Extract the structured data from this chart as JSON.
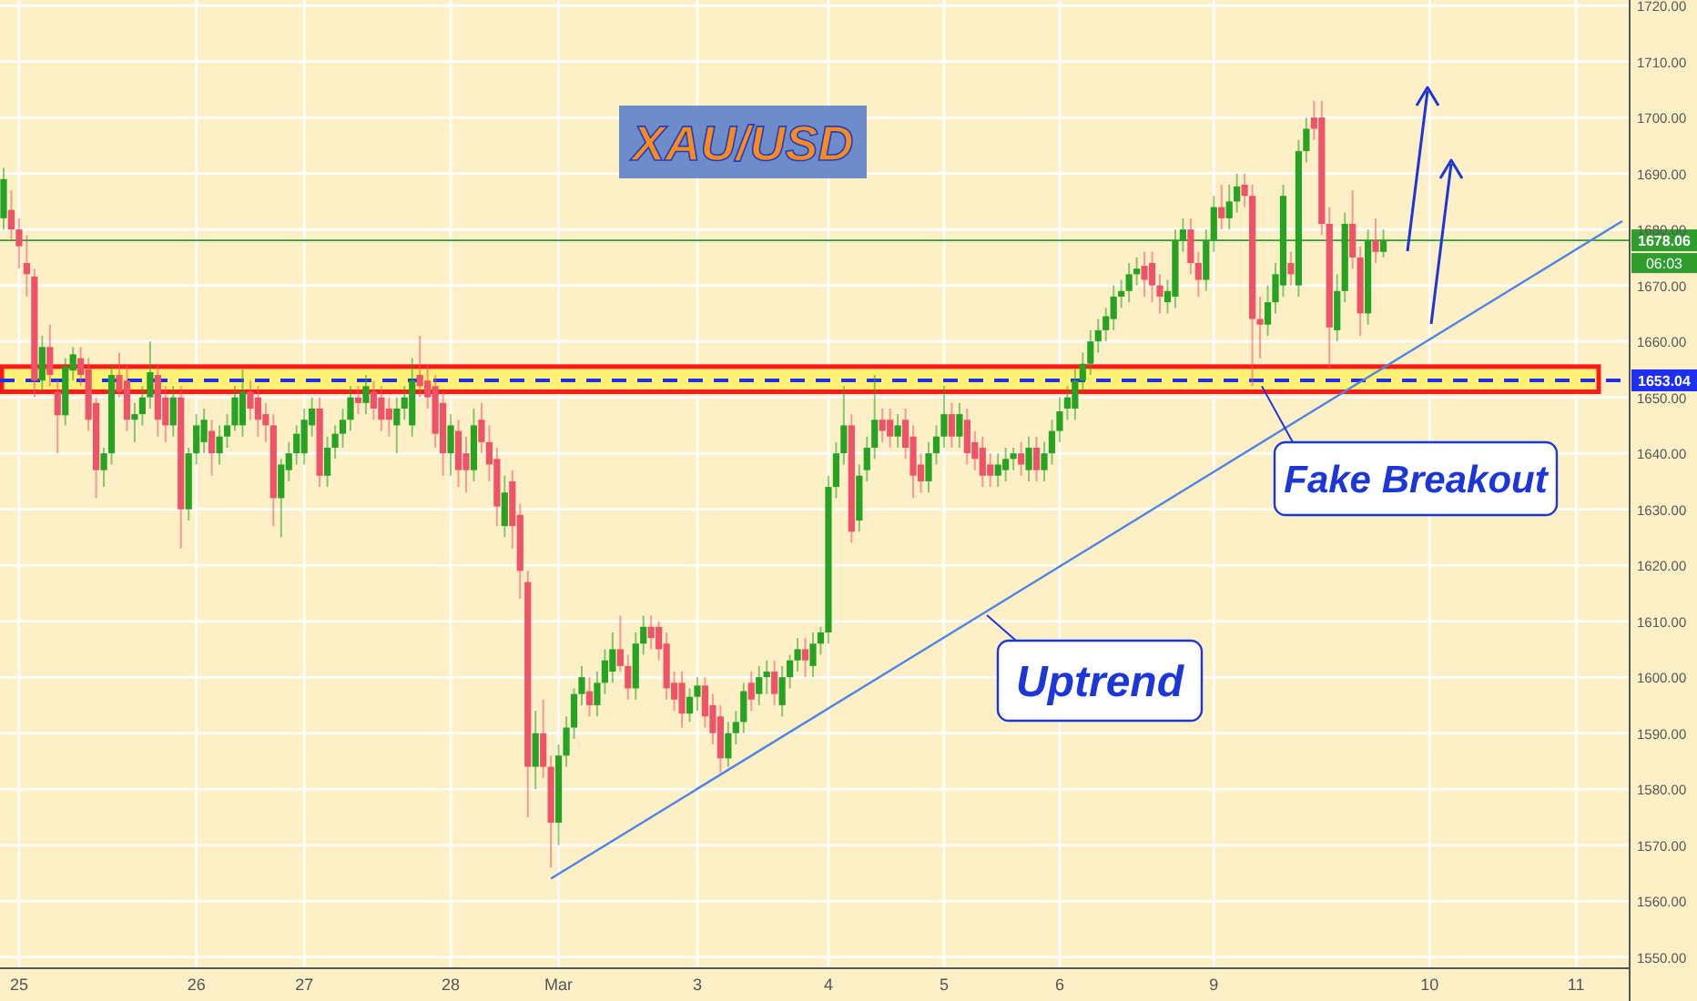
{
  "chart_data": {
    "type": "candlestick",
    "title": "XAU/USD",
    "categories": [
      null,
      null,
      "25",
      null,
      null,
      null,
      null,
      null,
      null,
      null,
      null,
      null,
      null,
      null,
      null,
      null,
      null,
      null,
      null,
      null,
      null,
      null,
      null,
      null,
      null,
      "26",
      null,
      null,
      null,
      null,
      null,
      null,
      null,
      null,
      null,
      null,
      null,
      null,
      null,
      "27",
      null,
      null,
      null,
      null,
      null,
      null,
      null,
      null,
      null,
      null,
      null,
      null,
      null,
      null,
      null,
      null,
      null,
      null,
      "28",
      null,
      null,
      null,
      null,
      null,
      null,
      null,
      null,
      null,
      null,
      null,
      null,
      null,
      "Mar",
      null,
      null,
      null,
      null,
      null,
      null,
      null,
      null,
      null,
      null,
      null,
      null,
      null,
      null,
      null,
      null,
      null,
      "3",
      null,
      null,
      null,
      null,
      null,
      null,
      null,
      null,
      null,
      null,
      null,
      null,
      null,
      null,
      null,
      null,
      "4",
      null,
      null,
      null,
      null,
      null,
      null,
      null,
      null,
      null,
      null,
      null,
      null,
      null,
      null,
      "5",
      null,
      null,
      null,
      null,
      null,
      null,
      null,
      null,
      null,
      null,
      null,
      null,
      null,
      null,
      "6",
      null,
      null,
      null,
      null,
      null,
      null,
      null,
      null,
      null,
      null,
      null,
      null,
      null,
      null,
      null,
      null,
      null,
      null,
      null,
      "9",
      null,
      null,
      null,
      null,
      null,
      null,
      null,
      null,
      null,
      null,
      null,
      null,
      null,
      null,
      null,
      null,
      null,
      null,
      null,
      null,
      null,
      null,
      null,
      null,
      null,
      null,
      null,
      "10",
      null,
      null,
      null,
      null,
      null,
      null,
      null,
      null,
      null,
      null,
      null,
      null,
      null,
      null,
      null,
      null,
      null,
      null,
      "11",
      null,
      null,
      null,
      null,
      null,
      null
    ],
    "ohlc": [
      [
        1682,
        1691,
        1680,
        1689
      ],
      [
        1683.5,
        1687,
        1678,
        1680
      ],
      [
        1680,
        1682,
        1673,
        1677
      ],
      [
        1674,
        1679,
        1668,
        1672
      ],
      [
        1671.6,
        1673,
        1650,
        1653
      ],
      [
        1653,
        1661,
        1651,
        1659
      ],
      [
        1659,
        1663,
        1652,
        1654
      ],
      [
        1651,
        1653,
        1640,
        1646.8
      ],
      [
        1646.8,
        1657,
        1645,
        1655.5
      ],
      [
        1654.8,
        1659,
        1653,
        1657.7
      ],
      [
        1657,
        1659,
        1652,
        1654
      ],
      [
        1655,
        1657,
        1644,
        1646
      ],
      [
        1649,
        1650,
        1632,
        1637
      ],
      [
        1637,
        1641,
        1634,
        1640
      ],
      [
        1640,
        1656,
        1638,
        1654
      ],
      [
        1654,
        1658,
        1650,
        1651
      ],
      [
        1653,
        1656,
        1644,
        1646
      ],
      [
        1646,
        1649,
        1642,
        1647
      ],
      [
        1647,
        1652,
        1645,
        1650
      ],
      [
        1650,
        1660,
        1648,
        1654.5
      ],
      [
        1654,
        1656,
        1643,
        1646
      ],
      [
        1650,
        1652,
        1642,
        1645
      ],
      [
        1645,
        1652,
        1643,
        1650
      ],
      [
        1650,
        1652,
        1623,
        1630
      ],
      [
        1630,
        1641,
        1628,
        1640
      ],
      [
        1640,
        1647,
        1638,
        1645
      ],
      [
        1642,
        1648,
        1640,
        1646
      ],
      [
        1644,
        1646,
        1636,
        1640
      ],
      [
        1640,
        1645,
        1638,
        1643
      ],
      [
        1643,
        1647,
        1641,
        1645
      ],
      [
        1645,
        1652,
        1644,
        1650
      ],
      [
        1645,
        1655,
        1643,
        1651
      ],
      [
        1651,
        1653,
        1646,
        1648
      ],
      [
        1650,
        1652,
        1643,
        1646
      ],
      [
        1647,
        1649,
        1642,
        1645
      ],
      [
        1645,
        1647,
        1627,
        1632
      ],
      [
        1632,
        1639,
        1625,
        1638
      ],
      [
        1637,
        1642,
        1635,
        1640
      ],
      [
        1640,
        1645,
        1638,
        1643.5
      ],
      [
        1640,
        1648,
        1638,
        1646
      ],
      [
        1645,
        1650,
        1643,
        1648
      ],
      [
        1648,
        1650,
        1634,
        1636
      ],
      [
        1636,
        1643,
        1634,
        1641
      ],
      [
        1641,
        1645,
        1639,
        1643.5
      ],
      [
        1643.5,
        1648,
        1641,
        1646
      ],
      [
        1646,
        1652,
        1644,
        1650
      ],
      [
        1650,
        1652,
        1647,
        1649
      ],
      [
        1649,
        1654,
        1647,
        1652
      ],
      [
        1651,
        1653,
        1646,
        1648
      ],
      [
        1650,
        1652,
        1644,
        1646
      ],
      [
        1648,
        1650,
        1643,
        1646
      ],
      [
        1645,
        1650,
        1640,
        1648
      ],
      [
        1648,
        1652,
        1646,
        1650
      ],
      [
        1645,
        1657,
        1643,
        1653
      ],
      [
        1654,
        1661,
        1650,
        1652
      ],
      [
        1653,
        1656,
        1648,
        1650
      ],
      [
        1652,
        1654,
        1641,
        1643.5
      ],
      [
        1649,
        1651,
        1636,
        1640
      ],
      [
        1640,
        1647,
        1636,
        1645
      ],
      [
        1644,
        1646,
        1634,
        1637
      ],
      [
        1640,
        1643,
        1633,
        1637
      ],
      [
        1637,
        1648,
        1635,
        1645
      ],
      [
        1646,
        1649,
        1640,
        1642
      ],
      [
        1642,
        1645,
        1635,
        1638
      ],
      [
        1639,
        1641,
        1627,
        1630.5
      ],
      [
        1627,
        1636,
        1625,
        1633
      ],
      [
        1635,
        1637,
        1623,
        1627
      ],
      [
        1629,
        1631,
        1614,
        1619
      ],
      [
        1617,
        1619,
        1575,
        1584
      ],
      [
        1584,
        1594,
        1580,
        1590
      ],
      [
        1590,
        1596,
        1582,
        1584
      ],
      [
        1584,
        1586,
        1566,
        1574
      ],
      [
        1574,
        1588,
        1570,
        1586
      ],
      [
        1586,
        1593,
        1584,
        1591
      ],
      [
        1591,
        1598,
        1589,
        1597
      ],
      [
        1597,
        1602,
        1595,
        1600
      ],
      [
        1597.5,
        1600,
        1593,
        1595
      ],
      [
        1595,
        1601,
        1593,
        1599
      ],
      [
        1599,
        1605,
        1597,
        1603
      ],
      [
        1601,
        1608,
        1599,
        1605
      ],
      [
        1605,
        1611,
        1601,
        1602
      ],
      [
        1602,
        1604,
        1596,
        1598
      ],
      [
        1598,
        1608,
        1596,
        1606
      ],
      [
        1606,
        1611,
        1604,
        1609
      ],
      [
        1609,
        1611,
        1605,
        1607
      ],
      [
        1609,
        1610,
        1603,
        1605
      ],
      [
        1606,
        1608,
        1596,
        1598
      ],
      [
        1599,
        1601,
        1594,
        1596
      ],
      [
        1599,
        1601,
        1591,
        1593.5
      ],
      [
        1593.5,
        1598,
        1592,
        1596.5
      ],
      [
        1596.5,
        1600,
        1594,
        1598.5
      ],
      [
        1598.5,
        1600,
        1591,
        1593
      ],
      [
        1595,
        1597,
        1588,
        1590
      ],
      [
        1593,
        1595,
        1583,
        1585.5
      ],
      [
        1585.5,
        1592,
        1584,
        1590
      ],
      [
        1590,
        1594,
        1588,
        1592
      ],
      [
        1592,
        1599,
        1590,
        1597.5
      ],
      [
        1599,
        1601,
        1594,
        1596
      ],
      [
        1597,
        1602,
        1595,
        1600
      ],
      [
        1600,
        1603,
        1597,
        1601
      ],
      [
        1601,
        1603,
        1595,
        1597
      ],
      [
        1595,
        1602,
        1593,
        1600
      ],
      [
        1600,
        1604,
        1598,
        1603
      ],
      [
        1603,
        1607,
        1601,
        1605
      ],
      [
        1605,
        1607,
        1600,
        1603
      ],
      [
        1602,
        1608,
        1600,
        1606
      ],
      [
        1606,
        1609,
        1604,
        1608
      ],
      [
        1608,
        1636,
        1606,
        1634
      ],
      [
        1634,
        1642,
        1632,
        1640
      ],
      [
        1640,
        1652,
        1638,
        1645
      ],
      [
        1645,
        1647,
        1624,
        1626
      ],
      [
        1628,
        1638,
        1626,
        1636
      ],
      [
        1637,
        1643,
        1635,
        1641
      ],
      [
        1641,
        1654,
        1639,
        1646
      ],
      [
        1646,
        1648,
        1642,
        1644
      ],
      [
        1646,
        1648,
        1641,
        1643
      ],
      [
        1643,
        1647,
        1641,
        1645
      ],
      [
        1646,
        1648,
        1639,
        1641
      ],
      [
        1643,
        1645,
        1632,
        1636
      ],
      [
        1638,
        1640,
        1633,
        1635
      ],
      [
        1635,
        1642,
        1633,
        1640
      ],
      [
        1640,
        1645,
        1638,
        1643
      ],
      [
        1643,
        1652,
        1641,
        1647
      ],
      [
        1647,
        1649,
        1641,
        1643
      ],
      [
        1643,
        1649,
        1641,
        1647
      ],
      [
        1646,
        1648,
        1638,
        1640
      ],
      [
        1642,
        1644,
        1637,
        1639
      ],
      [
        1641,
        1643,
        1634,
        1636
      ],
      [
        1638,
        1640,
        1634,
        1636
      ],
      [
        1636,
        1640,
        1634,
        1638
      ],
      [
        1637,
        1641,
        1635,
        1639
      ],
      [
        1639,
        1641,
        1637,
        1640
      ],
      [
        1640,
        1642,
        1636,
        1638
      ],
      [
        1637,
        1643,
        1635,
        1641
      ],
      [
        1641,
        1643,
        1635,
        1637
      ],
      [
        1637,
        1642,
        1635,
        1640
      ],
      [
        1640,
        1646,
        1638,
        1644
      ],
      [
        1644,
        1650,
        1642,
        1647.5
      ],
      [
        1648,
        1652,
        1646,
        1650
      ],
      [
        1648,
        1655,
        1646,
        1653
      ],
      [
        1653,
        1658,
        1651,
        1656
      ],
      [
        1656,
        1662,
        1654,
        1660
      ],
      [
        1660,
        1664,
        1658,
        1662
      ],
      [
        1662,
        1666,
        1660,
        1664.5
      ],
      [
        1664,
        1670,
        1662,
        1668
      ],
      [
        1668,
        1671,
        1666,
        1669
      ],
      [
        1669,
        1674,
        1667,
        1672
      ],
      [
        1672,
        1675,
        1670,
        1673
      ],
      [
        1673.5,
        1676,
        1668,
        1671
      ],
      [
        1674,
        1676,
        1667,
        1670
      ],
      [
        1670,
        1672,
        1665,
        1668
      ],
      [
        1667,
        1671,
        1665,
        1669
      ],
      [
        1668,
        1680,
        1666,
        1678
      ],
      [
        1678,
        1682,
        1676,
        1680
      ],
      [
        1680,
        1682,
        1672,
        1674
      ],
      [
        1674,
        1676,
        1668,
        1671
      ],
      [
        1671,
        1680,
        1669,
        1678
      ],
      [
        1678,
        1686,
        1676,
        1684
      ],
      [
        1684,
        1688,
        1680,
        1682
      ],
      [
        1682,
        1688,
        1680,
        1685
      ],
      [
        1685,
        1690,
        1683,
        1687.7
      ],
      [
        1688,
        1690,
        1684,
        1686
      ],
      [
        1686,
        1688,
        1652,
        1664
      ],
      [
        1664,
        1668,
        1657,
        1663
      ],
      [
        1663,
        1670,
        1661,
        1667
      ],
      [
        1667,
        1674,
        1665,
        1672
      ],
      [
        1670,
        1688,
        1668,
        1686
      ],
      [
        1674,
        1676,
        1670,
        1672
      ],
      [
        1670,
        1696,
        1668,
        1694
      ],
      [
        1694,
        1700,
        1692,
        1698
      ],
      [
        1700,
        1703,
        1696,
        1698
      ],
      [
        1700,
        1703,
        1679,
        1681
      ],
      [
        1681,
        1684,
        1655,
        1662.5
      ],
      [
        1662,
        1672,
        1660,
        1669
      ],
      [
        1669,
        1683,
        1667,
        1681
      ],
      [
        1681,
        1687,
        1673,
        1675
      ],
      [
        1675,
        1677,
        1661,
        1665
      ],
      [
        1665,
        1680,
        1663,
        1678
      ],
      [
        1678,
        1682,
        1674,
        1676
      ],
      [
        1676,
        1680,
        1675,
        1678
      ],
      null,
      null,
      null,
      null,
      null,
      null,
      null,
      null,
      null,
      null,
      null,
      null,
      null,
      null,
      null,
      null,
      null,
      null,
      null,
      null,
      null,
      null,
      null,
      null,
      null,
      null,
      null,
      null,
      null,
      null,
      null
    ],
    "series": [
      {
        "type": "line",
        "color": "#4d84e6",
        "values": [
          null,
          null,
          null,
          null,
          null,
          null,
          null,
          null,
          null,
          null,
          null,
          null,
          null,
          null,
          null,
          null,
          null,
          null,
          null,
          null,
          null,
          null,
          null,
          null,
          null,
          null,
          null,
          null,
          null,
          null,
          null,
          null,
          null,
          null,
          null,
          null,
          null,
          null,
          null,
          null,
          null,
          null,
          null,
          null,
          null,
          null,
          null,
          null,
          null,
          null,
          null,
          null,
          null,
          null,
          null,
          null,
          null,
          null,
          null,
          null,
          null,
          null,
          null,
          null,
          null,
          null,
          null,
          null,
          null,
          null,
          null,
          1564,
          null,
          null,
          null,
          null,
          null,
          null,
          null,
          null,
          null,
          null,
          null,
          null,
          null,
          null,
          null,
          null,
          null,
          null,
          null,
          null,
          null,
          null,
          null,
          null,
          null,
          null,
          null,
          null,
          null,
          null,
          null,
          null,
          null,
          null,
          null,
          null,
          null,
          null,
          null,
          null,
          null,
          null,
          null,
          null,
          null,
          null,
          null,
          null,
          null,
          null,
          null,
          null,
          null,
          null,
          null,
          null,
          null,
          null,
          null,
          null,
          null,
          null,
          null,
          null,
          null,
          null,
          null,
          null,
          null,
          null,
          null,
          null,
          null,
          null,
          null,
          null,
          null,
          null,
          null,
          null,
          null,
          null,
          null,
          null,
          null,
          null,
          null,
          null,
          null,
          null,
          null,
          null,
          null,
          null,
          null,
          null,
          null,
          null,
          null,
          null,
          null,
          null,
          null,
          null,
          null,
          null,
          null,
          null,
          null,
          null,
          null,
          null,
          null,
          null,
          null,
          null,
          null,
          null,
          null,
          null,
          null,
          null,
          null,
          null,
          null,
          null,
          null,
          null,
          null,
          null,
          null,
          null,
          null,
          null,
          null,
          null,
          null,
          null,
          1681.5
        ]
      }
    ],
    "ylim": [
      1548,
      1721
    ],
    "yticks": [
      {
        "value": 1550,
        "label": "1550.00"
      },
      {
        "value": 1560,
        "label": "1560.00"
      },
      {
        "value": 1570,
        "label": "1570.00"
      },
      {
        "value": 1580,
        "label": "1580.00"
      },
      {
        "value": 1590,
        "label": "1590.00"
      },
      {
        "value": 1600,
        "label": "1600.00"
      },
      {
        "value": 1610,
        "label": "1610.00"
      },
      {
        "value": 1620,
        "label": "1620.00"
      },
      {
        "value": 1630,
        "label": "1630.00"
      },
      {
        "value": 1640,
        "label": "1640.00"
      },
      {
        "value": 1650,
        "label": "1650.00"
      },
      {
        "value": 1660,
        "label": "1660.00"
      },
      {
        "value": 1670,
        "label": "1670.00"
      },
      {
        "value": 1680,
        "label": "1680.00"
      },
      {
        "value": 1690,
        "label": "1690.00"
      },
      {
        "value": 1700,
        "label": "1700.00"
      },
      {
        "value": 1710,
        "label": "1710.00"
      },
      {
        "value": 1720,
        "label": "1720.00"
      }
    ],
    "grid": true,
    "ref_lines": [
      {
        "axis": "y",
        "value": 1678.06,
        "label": "1678.06",
        "color": "#2f9e2f",
        "line_style": "solid"
      },
      {
        "axis": "y",
        "value": 1653.04,
        "label": "1653.04",
        "color": "#1f2ff0",
        "line_style": "dashed"
      }
    ],
    "bands": [
      {
        "axis": "y",
        "from": 1651,
        "to": 1655.5,
        "color": "#fff176"
      }
    ],
    "annotations": [
      {
        "text": "Fake Breakout",
        "y": 1652
      },
      "Uptrend",
      "06:03"
    ]
  }
}
